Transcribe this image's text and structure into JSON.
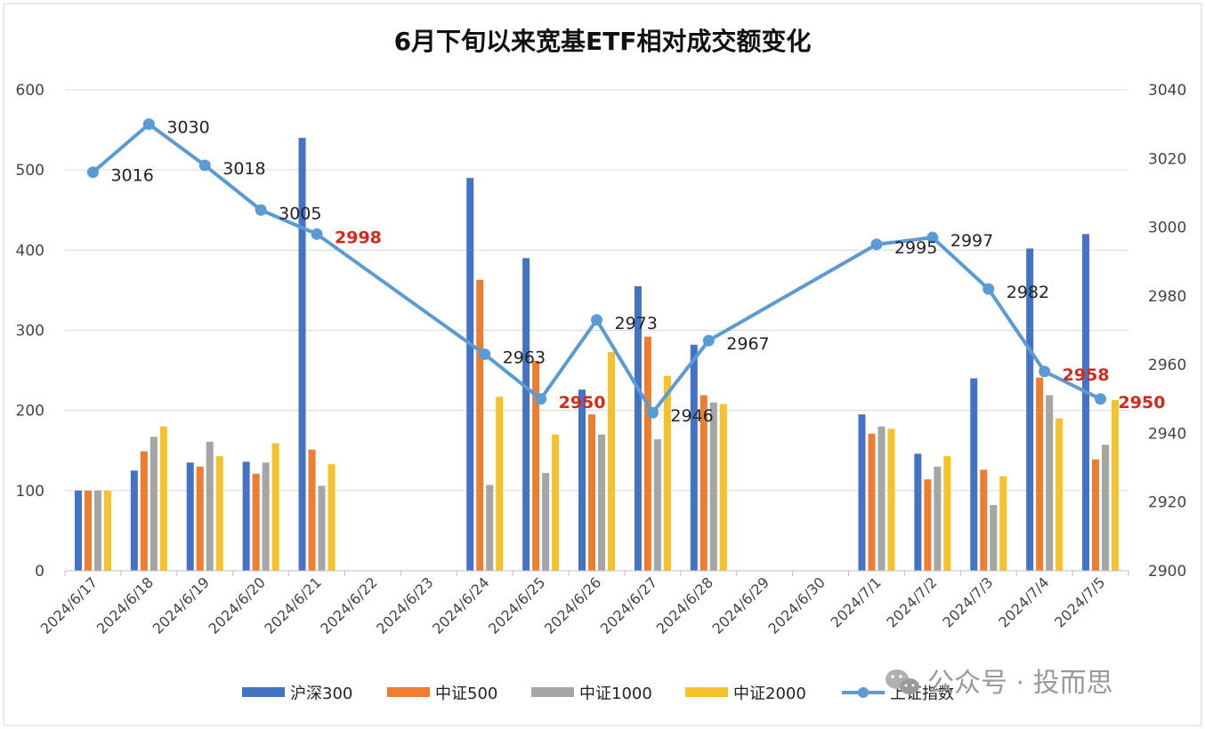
{
  "chart_data": {
    "type": "bar",
    "title": "6月下旬以来宽基ETF相对成交额变化",
    "categories": [
      "2024/6/17",
      "2024/6/18",
      "2024/6/19",
      "2024/6/20",
      "2024/6/21",
      "2024/6/22",
      "2024/6/23",
      "2024/6/24",
      "2024/6/25",
      "2024/6/26",
      "2024/6/27",
      "2024/6/28",
      "2024/6/29",
      "2024/6/30",
      "2024/7/1",
      "2024/7/2",
      "2024/7/3",
      "2024/7/4",
      "2024/7/5"
    ],
    "ylim": [
      0,
      600
    ],
    "y_ticks": [
      "0",
      "100",
      "200",
      "300",
      "400",
      "500",
      "600"
    ],
    "y2lim": [
      2900,
      3040
    ],
    "y2_ticks": [
      "2900",
      "2920",
      "2940",
      "2960",
      "2980",
      "3000",
      "3020",
      "3040"
    ],
    "grid": true,
    "legend_position": "bottom",
    "series": [
      {
        "name": "沪深300",
        "color": "#4472c4",
        "values": [
          100,
          125,
          135,
          136,
          540,
          null,
          null,
          490,
          390,
          226,
          355,
          282,
          null,
          null,
          195,
          146,
          240,
          402,
          420
        ]
      },
      {
        "name": "中证500",
        "color": "#ed7d31",
        "values": [
          100,
          149,
          130,
          121,
          151,
          null,
          null,
          363,
          262,
          195,
          292,
          219,
          null,
          null,
          171,
          114,
          126,
          241,
          139
        ]
      },
      {
        "name": "中证1000",
        "color": "#a5a5a5",
        "values": [
          100,
          167,
          161,
          135,
          106,
          null,
          null,
          107,
          122,
          170,
          164,
          210,
          null,
          null,
          180,
          130,
          82,
          219,
          157
        ]
      },
      {
        "name": "中证2000",
        "color": "#f5c22b",
        "values": [
          100,
          180,
          143,
          159,
          133,
          null,
          null,
          217,
          170,
          273,
          243,
          208,
          null,
          null,
          177,
          143,
          118,
          190,
          213
        ]
      }
    ],
    "line_series": {
      "name": "上证指数",
      "color": "#5b9bd5",
      "axis": "right",
      "values": [
        3016,
        3030,
        3018,
        3005,
        2998,
        null,
        null,
        2963,
        2950,
        2973,
        2946,
        2967,
        null,
        null,
        2995,
        2997,
        2982,
        2958,
        2950
      ],
      "labels": [
        "3016",
        "3030",
        "3018",
        "3005",
        "2998",
        "",
        "",
        "2963",
        "2950",
        "2973",
        "2946",
        "2967",
        "",
        "",
        "2995",
        "2997",
        "2982",
        "2958",
        "2950"
      ],
      "highlight_labels": [
        "2998",
        "2958",
        "2950"
      ],
      "highlight_color": "#d42a1e"
    }
  },
  "watermark": {
    "icon": "wechat-icon",
    "text": "公众号 · 投而思"
  }
}
